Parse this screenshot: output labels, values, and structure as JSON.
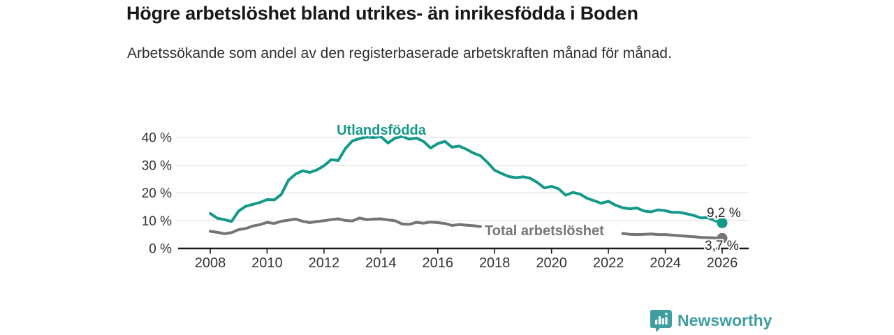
{
  "chart_data": {
    "type": "line",
    "title": "Högre arbetslöshet bland utrikes- än inrikesfödda i Boden",
    "subtitle": "Arbetssökande som andel av den registerbaserade arbetskraften månad för månad.",
    "xlabel": "",
    "ylabel": "",
    "grid": "horizontal",
    "legend": "inline-labels-on-lines",
    "xlim": [
      2007,
      2027
    ],
    "ylim": [
      0,
      40
    ],
    "y_ticks": [
      {
        "value": 0,
        "label": "0 %"
      },
      {
        "value": 10,
        "label": "10 %"
      },
      {
        "value": 20,
        "label": "20 %"
      },
      {
        "value": 30,
        "label": "30 %"
      },
      {
        "value": 40,
        "label": "40 %"
      }
    ],
    "x_ticks": [
      {
        "value": 2008,
        "label": "2008"
      },
      {
        "value": 2010,
        "label": "2010"
      },
      {
        "value": 2012,
        "label": "2012"
      },
      {
        "value": 2014,
        "label": "2014"
      },
      {
        "value": 2016,
        "label": "2016"
      },
      {
        "value": 2018,
        "label": "2018"
      },
      {
        "value": 2020,
        "label": "2020"
      },
      {
        "value": 2022,
        "label": "2022"
      },
      {
        "value": 2024,
        "label": "2024"
      },
      {
        "value": 2026,
        "label": "2026"
      }
    ],
    "x": [
      2008,
      2008.25,
      2008.5,
      2008.75,
      2009,
      2009.25,
      2009.5,
      2009.75,
      2010,
      2010.25,
      2010.5,
      2010.75,
      2011,
      2011.25,
      2011.5,
      2011.75,
      2012,
      2012.25,
      2012.5,
      2012.75,
      2013,
      2013.25,
      2013.5,
      2013.75,
      2014,
      2014.25,
      2014.5,
      2014.75,
      2015,
      2015.25,
      2015.5,
      2015.75,
      2016,
      2016.25,
      2016.5,
      2016.75,
      2017,
      2017.25,
      2017.5,
      2017.75,
      2018,
      2018.25,
      2018.5,
      2018.75,
      2019,
      2019.25,
      2019.5,
      2019.75,
      2020,
      2020.25,
      2020.5,
      2020.75,
      2021,
      2021.25,
      2021.5,
      2021.75,
      2022,
      2022.25,
      2022.5,
      2022.75,
      2023,
      2023.25,
      2023.5,
      2023.75,
      2024,
      2024.25,
      2024.5,
      2024.75,
      2025,
      2025.25,
      2025.5,
      2025.75,
      2026
    ],
    "series": [
      {
        "name": "Utlandsfödda",
        "color": "#13998a",
        "end_label": "9,2 %",
        "end_value": 9.2,
        "values": [
          12.6,
          10.9,
          10.4,
          9.7,
          13.5,
          15.2,
          15.9,
          16.6,
          17.6,
          17.5,
          19.5,
          24.6,
          26.8,
          28,
          27.4,
          28.3,
          29.8,
          32,
          31.7,
          36,
          38.8,
          39.6,
          40.2,
          40,
          40.3,
          38,
          39.8,
          40.4,
          39.4,
          39.8,
          38.6,
          36.2,
          37.8,
          38.6,
          36.5,
          36.9,
          35.8,
          34.4,
          33.4,
          31,
          28.2,
          27,
          25.9,
          25.5,
          25.8,
          25.3,
          23.8,
          21.8,
          22.4,
          21.5,
          19.2,
          20.2,
          19.6,
          18.1,
          17.2,
          16.3,
          17,
          15.6,
          14.7,
          14.3,
          14.6,
          13.5,
          13.2,
          13.9,
          13.6,
          13,
          13,
          12.5,
          11.9,
          11,
          11.1,
          10,
          9.2
        ]
      },
      {
        "name": "Total arbetslöshet",
        "color": "#747579",
        "end_label": "3,7 %",
        "end_value": 3.7,
        "values": [
          6.2,
          5.8,
          5.3,
          5.7,
          6.8,
          7.2,
          8.1,
          8.6,
          9.4,
          9,
          9.8,
          10.2,
          10.6,
          9.8,
          9.3,
          9.7,
          10,
          10.4,
          10.7,
          10.1,
          9.9,
          11,
          10.4,
          10.6,
          10.7,
          10.3,
          10,
          8.8,
          8.7,
          9.4,
          9.1,
          9.5,
          9.3,
          9,
          8.3,
          8.6,
          8.4,
          8.2,
          7.9,
          null,
          null,
          null,
          null,
          null,
          null,
          null,
          null,
          null,
          null,
          null,
          null,
          null,
          null,
          null,
          null,
          null,
          null,
          null,
          5.4,
          5.1,
          5,
          5.1,
          5.2,
          5,
          5,
          4.8,
          4.6,
          4.4,
          4.2,
          4,
          3.9,
          3.8,
          3.7
        ]
      }
    ]
  },
  "footer": {
    "brand": "Newsworthy",
    "brand_color": "#3f9ea0",
    "logo_icon": "bar-chart-speech-bubble"
  }
}
